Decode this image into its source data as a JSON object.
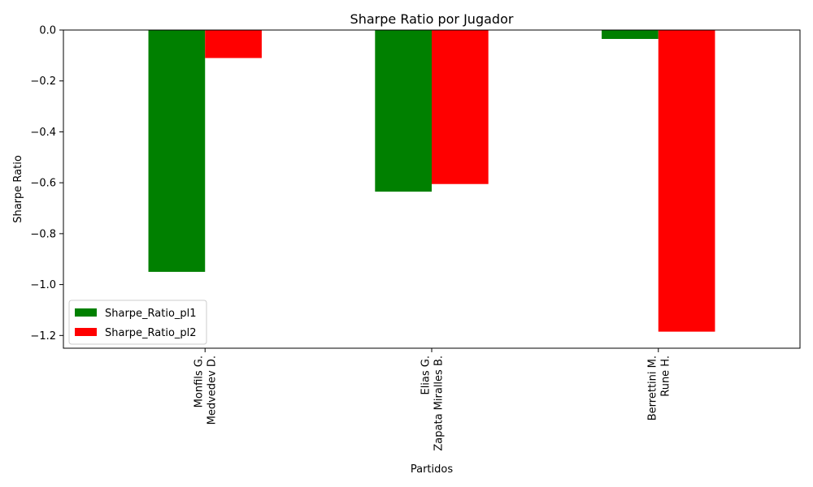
{
  "chart_data": {
    "type": "bar",
    "title": "Sharpe Ratio por Jugador",
    "xlabel": "Partidos",
    "ylabel": "Sharpe Ratio",
    "categories": [
      [
        "Monfils G.",
        "Medvedev D."
      ],
      [
        "Elias G.",
        "Zapata Miralles B."
      ],
      [
        "Berrettini M.",
        "Rune H."
      ]
    ],
    "series": [
      {
        "name": "Sharpe_Ratio_pl1",
        "color": "#008000",
        "values": [
          -0.95,
          -0.635,
          -0.035
        ]
      },
      {
        "name": "Sharpe_Ratio_pl2",
        "color": "#ff0000",
        "values": [
          -0.11,
          -0.605,
          -1.185
        ]
      }
    ],
    "ylim": [
      -1.25,
      0.0
    ],
    "yticks": [
      0.0,
      -0.2,
      -0.4,
      -0.6,
      -0.8,
      -1.0,
      -1.2
    ],
    "ytick_labels": [
      "0.0",
      "−0.2",
      "−0.4",
      "−0.6",
      "−0.8",
      "−1.0",
      "−1.2"
    ],
    "grid": false,
    "legend_position": "lower-left"
  }
}
